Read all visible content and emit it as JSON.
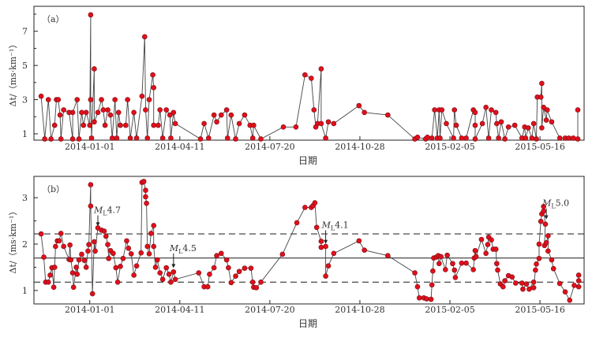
{
  "chart_data": [
    {
      "type": "line",
      "panel_label": "（a）",
      "xlabel": "日期",
      "ylabel": "Δt/（ms·km⁻¹）",
      "x_ticks": [
        {
          "day": 0,
          "label": "2014-01-01"
        },
        {
          "day": 100,
          "label": "2014-04-11"
        },
        {
          "day": 200,
          "label": "2014-07-20"
        },
        {
          "day": 300,
          "label": "2014-10-28"
        },
        {
          "day": 400,
          "label": "2015-02-05"
        },
        {
          "day": 500,
          "label": "2015-05-16"
        }
      ],
      "xlim_days": [
        -62,
        549
      ],
      "ylim": [
        0.63,
        8.46
      ],
      "y_ticks": [
        1,
        3,
        5,
        7
      ],
      "series": [
        {
          "name": "Δt",
          "color": "#e0101c",
          "x_days": [
            -54,
            -50,
            -46,
            -43,
            -39,
            -37,
            -35,
            -33,
            -32,
            -29,
            -23,
            -19,
            -19,
            -14,
            -12,
            -9,
            -7,
            -4,
            0,
            1,
            1,
            2,
            5,
            5,
            9,
            13,
            15,
            17,
            20,
            23,
            25,
            28,
            30,
            32,
            34,
            40,
            42,
            45,
            49,
            52,
            58,
            61,
            62,
            64,
            66,
            70,
            71,
            71,
            76,
            78,
            81,
            85,
            89,
            90,
            93,
            95,
            123,
            127,
            132,
            138,
            141,
            146,
            152,
            153,
            157,
            162,
            166,
            172,
            178,
            181,
            182,
            190,
            215,
            229,
            239,
            246,
            249,
            251,
            253,
            257,
            257,
            262,
            265,
            271,
            299,
            305,
            331,
            361,
            364,
            373,
            375,
            380,
            383,
            386,
            388,
            389,
            391,
            396,
            404,
            405,
            407,
            413,
            418,
            426,
            428,
            428,
            428,
            436,
            440,
            443,
            446,
            451,
            452,
            454,
            457,
            461,
            465,
            472,
            480,
            483,
            484,
            487,
            491,
            493,
            496,
            497,
            501,
            502,
            502,
            504,
            507,
            508,
            513,
            522,
            528,
            532,
            537,
            542,
            542
          ],
          "y": [
            3.2,
            0.7,
            3.0,
            0.7,
            1.5,
            3.0,
            3.0,
            2.1,
            0.7,
            2.4,
            2.25,
            0.7,
            2.25,
            3.0,
            0.7,
            2.25,
            1.5,
            2.25,
            1.5,
            7.96,
            3.0,
            0.75,
            4.8,
            1.7,
            2.25,
            3.0,
            2.4,
            1.5,
            2.4,
            2.1,
            0.75,
            3.0,
            0.75,
            2.25,
            1.5,
            1.5,
            3.0,
            0.75,
            2.25,
            0.75,
            3.2,
            6.68,
            2.4,
            0.75,
            3.0,
            4.45,
            3.7,
            1.5,
            1.5,
            2.4,
            0.75,
            2.4,
            2.1,
            0.75,
            2.25,
            1.6,
            0.7,
            1.6,
            0.75,
            2.1,
            1.7,
            2.1,
            2.4,
            0.75,
            2.1,
            0.7,
            1.6,
            2.1,
            1.5,
            0.75,
            1.5,
            0.7,
            1.4,
            1.4,
            4.45,
            4.25,
            2.4,
            1.4,
            1.6,
            4.8,
            1.6,
            0.75,
            1.7,
            1.6,
            2.65,
            2.25,
            2.1,
            0.7,
            0.8,
            0.7,
            0.8,
            0.75,
            2.4,
            0.75,
            2.4,
            0.75,
            2.4,
            1.6,
            0.75,
            2.4,
            1.5,
            0.75,
            0.75,
            2.4,
            2.25,
            1.5,
            0.7,
            1.6,
            2.55,
            0.75,
            2.4,
            2.25,
            1.6,
            0.75,
            1.7,
            0.7,
            1.4,
            1.5,
            0.75,
            1.4,
            0.75,
            1.35,
            0.75,
            1.6,
            0.7,
            3.15,
            3.15,
            3.95,
            1.35,
            2.55,
            1.8,
            2.4,
            1.7,
            0.75,
            0.75,
            0.75,
            0.75,
            0.7,
            2.4
          ]
        }
      ]
    },
    {
      "type": "line",
      "panel_label": "（b）",
      "xlabel": "日期",
      "ylabel": "Δt/（ms·km⁻¹）",
      "x_ticks": [
        {
          "day": 0,
          "label": "2014-01-01"
        },
        {
          "day": 100,
          "label": "2014-04-11"
        },
        {
          "day": 200,
          "label": "2014-07-20"
        },
        {
          "day": 300,
          "label": "2014-10-28"
        },
        {
          "day": 400,
          "label": "2015-02-05"
        },
        {
          "day": 500,
          "label": "2015-05-16"
        }
      ],
      "xlim_days": [
        -62,
        549
      ],
      "ylim": [
        0.71,
        3.46
      ],
      "y_ticks": [
        1,
        2,
        3
      ],
      "reference_lines": [
        {
          "y": 1.7,
          "style": "solid"
        },
        {
          "y": 2.22,
          "style": "dashed"
        },
        {
          "y": 1.18,
          "style": "dashed"
        }
      ],
      "annotations": [
        {
          "label_main": "M",
          "label_sub": "L",
          "label_mag": "4.7",
          "day": 9,
          "y": 2.35,
          "label_y": 2.67
        },
        {
          "label_main": "M",
          "label_sub": "L",
          "label_mag": "4.5",
          "day": 93,
          "y": 1.45,
          "label_y": 1.85
        },
        {
          "label_main": "M",
          "label_sub": "L",
          "label_mag": "4.1",
          "day": 262,
          "y": 1.97,
          "label_y": 2.35
        },
        {
          "label_main": "M",
          "label_sub": "L",
          "label_mag": "5.0",
          "day": 507,
          "y": 2.5,
          "label_y": 2.82
        }
      ],
      "series": [
        {
          "name": "Δt",
          "color": "#e0101c",
          "x_days": [
            -54,
            -51,
            -49,
            -46,
            -44,
            -42,
            -40,
            -39,
            -38,
            -36,
            -34,
            -32,
            -29,
            -23,
            -22,
            -21,
            -19,
            -18,
            -15,
            -14,
            -12,
            -9,
            -6,
            -4,
            -2,
            -1,
            1,
            1,
            3,
            5,
            6,
            9,
            13,
            16,
            18,
            20,
            21,
            23,
            26,
            29,
            31,
            34,
            37,
            41,
            43,
            46,
            49,
            52,
            57,
            58,
            60,
            62,
            62,
            63,
            64,
            66,
            68,
            71,
            71,
            73,
            75,
            78,
            81,
            85,
            88,
            90,
            93,
            95,
            121,
            127,
            131,
            133,
            138,
            141,
            146,
            152,
            154,
            157,
            162,
            166,
            172,
            179,
            181,
            182,
            185,
            190,
            214,
            230,
            239,
            246,
            248,
            250,
            252,
            257,
            257,
            262,
            262,
            265,
            271,
            299,
            305,
            331,
            361,
            364,
            366,
            371,
            374,
            379,
            380,
            381,
            382,
            385,
            387,
            388,
            390,
            395,
            397,
            403,
            405,
            406,
            413,
            418,
            426,
            427,
            428,
            429,
            435,
            440,
            442,
            443,
            446,
            448,
            451,
            452,
            453,
            456,
            459,
            461,
            465,
            469,
            473,
            480,
            481,
            485,
            488,
            493,
            493,
            495,
            496,
            499,
            499,
            501,
            502,
            504,
            504,
            506,
            505,
            507,
            509,
            509,
            513,
            515,
            522,
            528,
            533,
            538,
            543,
            543,
            543
          ],
          "y": [
            2.22,
            1.72,
            1.18,
            1.18,
            1.33,
            1.49,
            1.07,
            1.5,
            1.95,
            2.07,
            2.07,
            2.23,
            1.95,
            1.67,
            1.98,
            1.66,
            1.38,
            1.07,
            1.5,
            1.35,
            1.66,
            1.78,
            1.65,
            1.5,
            1.85,
            1.99,
            3.28,
            2.82,
            0.93,
            2.05,
            1.85,
            2.35,
            2.3,
            2.28,
            2.17,
            1.99,
            1.69,
            1.86,
            1.8,
            1.49,
            1.18,
            1.52,
            1.69,
            2.07,
            1.91,
            1.79,
            1.33,
            1.53,
            1.81,
            3.33,
            3.35,
            3.16,
            3.02,
            2.88,
            1.95,
            1.79,
            2.23,
            2.4,
            1.95,
            1.5,
            1.66,
            1.38,
            1.24,
            1.49,
            1.35,
            1.18,
            1.4,
            1.24,
            1.38,
            1.08,
            1.08,
            1.35,
            1.49,
            1.75,
            1.8,
            1.66,
            1.49,
            1.17,
            1.31,
            1.41,
            1.48,
            1.48,
            1.18,
            1.07,
            1.06,
            1.18,
            1.78,
            2.46,
            2.79,
            2.79,
            2.83,
            2.89,
            2.36,
            2.06,
            1.93,
            1.95,
            1.31,
            1.53,
            1.8,
            2.07,
            1.87,
            1.75,
            1.38,
            1.08,
            0.84,
            0.84,
            0.82,
            0.81,
            1.12,
            1.42,
            1.7,
            1.72,
            1.75,
            1.58,
            1.73,
            1.45,
            1.76,
            1.58,
            1.44,
            1.28,
            1.59,
            1.59,
            1.45,
            1.7,
            1.86,
            1.73,
            2.1,
            1.8,
            1.99,
            2.15,
            2.09,
            1.89,
            1.89,
            1.58,
            1.44,
            1.14,
            1.08,
            1.21,
            1.32,
            1.29,
            1.16,
            1.16,
            1.03,
            1.14,
            1.03,
            1.18,
            1.06,
            1.44,
            1.57,
            1.69,
            2.0,
            2.49,
            2.65,
            2.81,
            2.71,
            2.43,
            1.97,
            2.03,
            2.18,
            1.85,
            1.66,
            1.47,
            1.15,
            0.97,
            0.79,
            1.11,
            1.08,
            1.21,
            1.33
          ]
        }
      ]
    }
  ]
}
